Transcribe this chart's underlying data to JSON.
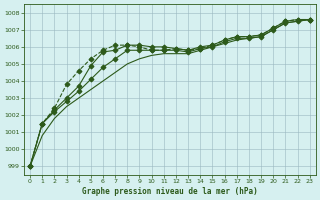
{
  "title": "Graphe pression niveau de la mer (hPa)",
  "background_color": "#d6f0f0",
  "grid_color": "#a0b8c8",
  "line_color": "#2d5a1b",
  "xlim": [
    -0.5,
    23.5
  ],
  "ylim": [
    998.5,
    1008.5
  ],
  "yticks": [
    999,
    1000,
    1001,
    1002,
    1003,
    1004,
    1005,
    1006,
    1007,
    1008
  ],
  "xticks": [
    0,
    1,
    2,
    3,
    4,
    5,
    6,
    7,
    8,
    9,
    10,
    11,
    12,
    13,
    14,
    15,
    16,
    17,
    18,
    19,
    20,
    21,
    22,
    23
  ],
  "series": [
    {
      "x": [
        0,
        1,
        2,
        3,
        4,
        5,
        6,
        7,
        8,
        9,
        10,
        11,
        12,
        13,
        14,
        15,
        16,
        17,
        18,
        19,
        20,
        21,
        22,
        23
      ],
      "y": [
        999.0,
        1001.5,
        1002.4,
        1003.8,
        1004.6,
        1005.3,
        1005.8,
        1006.1,
        1006.1,
        1006.0,
        1005.8,
        1005.8,
        1005.9,
        1005.8,
        1005.9,
        1006.1,
        1006.4,
        1006.6,
        1006.6,
        1006.7,
        1007.1,
        1007.5,
        1007.6,
        1007.6
      ],
      "marker": "D",
      "linestyle": "--",
      "markersize": 2.5,
      "linewidth": 0.8
    },
    {
      "x": [
        0,
        1,
        2,
        3,
        4,
        5,
        6,
        7,
        8,
        9,
        10,
        11,
        12,
        13,
        14,
        15,
        16,
        17,
        18,
        19,
        20,
        21,
        22,
        23
      ],
      "y": [
        999.0,
        1001.5,
        1002.3,
        1003.0,
        1003.7,
        1004.9,
        1005.7,
        1005.8,
        1006.1,
        1006.1,
        1006.0,
        1006.0,
        1005.9,
        1005.8,
        1006.0,
        1006.1,
        1006.4,
        1006.6,
        1006.6,
        1006.7,
        1007.1,
        1007.5,
        1007.6,
        1007.6
      ],
      "marker": "D",
      "linestyle": "-",
      "markersize": 2.5,
      "linewidth": 0.8
    },
    {
      "x": [
        0,
        1,
        2,
        3,
        4,
        5,
        6,
        7,
        8,
        9,
        10,
        11,
        12,
        13,
        14,
        15,
        16,
        17,
        18,
        19,
        20,
        21,
        22,
        23
      ],
      "y": [
        999.0,
        1001.5,
        1002.2,
        1002.8,
        1003.4,
        1004.1,
        1004.8,
        1005.3,
        1005.8,
        1005.8,
        1005.8,
        1005.8,
        1005.8,
        1005.7,
        1005.9,
        1006.0,
        1006.3,
        1006.5,
        1006.5,
        1006.6,
        1007.0,
        1007.4,
        1007.5,
        1007.6
      ],
      "marker": "D",
      "linestyle": "-",
      "markersize": 2.5,
      "linewidth": 0.8
    },
    {
      "x": [
        0,
        1,
        2,
        3,
        4,
        5,
        6,
        7,
        8,
        9,
        10,
        11,
        12,
        13,
        14,
        15,
        16,
        17,
        18,
        19,
        20,
        21,
        22,
        23
      ],
      "y": [
        999.0,
        1000.8,
        1001.8,
        1002.5,
        1003.0,
        1003.5,
        1004.0,
        1004.5,
        1005.0,
        1005.3,
        1005.5,
        1005.6,
        1005.6,
        1005.6,
        1005.8,
        1006.0,
        1006.2,
        1006.4,
        1006.5,
        1006.6,
        1007.0,
        1007.4,
        1007.5,
        1007.6
      ],
      "marker": null,
      "linestyle": "-",
      "markersize": 0,
      "linewidth": 0.8
    }
  ]
}
